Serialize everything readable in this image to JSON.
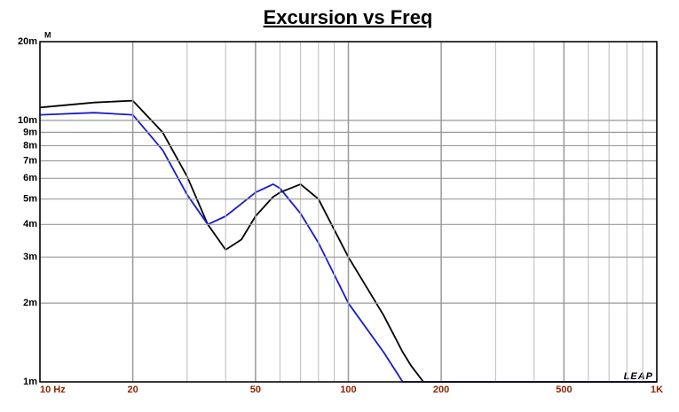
{
  "chart_data": {
    "type": "line",
    "title": "Excursion vs Freq",
    "y_label": "M",
    "watermark": "LEAP",
    "log_x": true,
    "log_y": true,
    "grid": true,
    "xlim": [
      10,
      1000
    ],
    "ylim": [
      0.001,
      0.02
    ],
    "xticks": [
      {
        "value": 10,
        "label": "10  Hz"
      },
      {
        "value": 20,
        "label": "20"
      },
      {
        "value": 50,
        "label": "50"
      },
      {
        "value": 100,
        "label": "100"
      },
      {
        "value": 200,
        "label": "200"
      },
      {
        "value": 500,
        "label": "500"
      },
      {
        "value": 1000,
        "label": "1K"
      }
    ],
    "yticks": [
      {
        "value": 0.001,
        "label": "1m"
      },
      {
        "value": 0.002,
        "label": "2m"
      },
      {
        "value": 0.003,
        "label": "3m"
      },
      {
        "value": 0.004,
        "label": "4m"
      },
      {
        "value": 0.005,
        "label": "5m"
      },
      {
        "value": 0.006,
        "label": "6m"
      },
      {
        "value": 0.007,
        "label": "7m"
      },
      {
        "value": 0.008,
        "label": "8m"
      },
      {
        "value": 0.009,
        "label": "9m"
      },
      {
        "value": 0.01,
        "label": "10m"
      },
      {
        "value": 0.02,
        "label": "20m"
      }
    ],
    "x_grid": [
      30,
      40,
      60,
      70,
      80,
      90,
      300,
      400,
      600,
      700,
      800,
      900
    ],
    "x": [
      10,
      15,
      20,
      25,
      30,
      35,
      40,
      45,
      50,
      57,
      60,
      70,
      80,
      100,
      130,
      150,
      160,
      175,
      1000
    ],
    "series": [
      {
        "name": "Black",
        "color": "#000000",
        "values": [
          0.0112,
          0.0117,
          0.0119,
          0.009,
          0.0061,
          0.004,
          0.0032,
          0.0035,
          0.0043,
          0.0051,
          0.0053,
          0.0057,
          0.005,
          0.003,
          0.0018,
          0.0013,
          0.00115,
          0.001,
          0.001
        ]
      },
      {
        "name": "Blue",
        "color": "#1a1acc",
        "values": [
          0.0105,
          0.0107,
          0.0105,
          0.0077,
          0.0052,
          0.004,
          0.0043,
          0.0048,
          0.0053,
          0.0057,
          0.0055,
          0.0044,
          0.0034,
          0.002,
          0.0013,
          0.001,
          0.001,
          0.001,
          0.001
        ]
      }
    ]
  }
}
